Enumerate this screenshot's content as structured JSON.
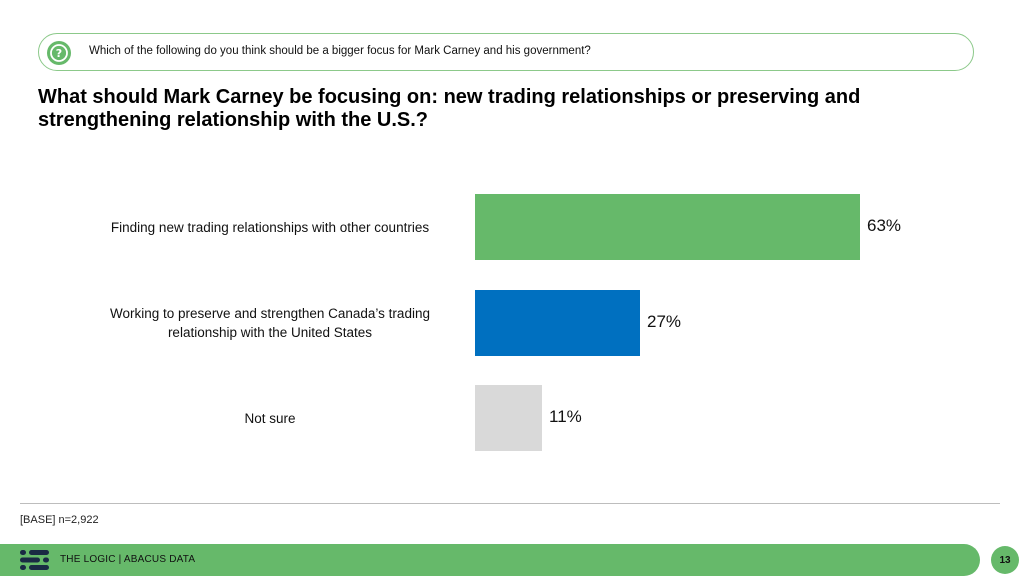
{
  "question": {
    "icon": "question-icon",
    "text": "Which of the following do you think should be a bigger focus for Mark Carney and his government?"
  },
  "headline": "What should Mark Carney be focusing on: new trading relationships or preserving and strengthening relationship with the U.S.?",
  "chart_data": {
    "type": "bar",
    "orientation": "horizontal",
    "title": "",
    "xlabel": "",
    "ylabel": "",
    "grid": false,
    "legend": "none",
    "xlim": [
      0,
      63
    ],
    "categories": [
      "Finding new trading relationships with other countries",
      "Working to preserve and strengthen Canada’s trading relationship with the United States",
      "Not sure"
    ],
    "values": [
      63,
      27,
      11
    ],
    "value_labels": [
      "63%",
      "27%",
      "11%"
    ],
    "colors": [
      "#66b96a",
      "#0070c0",
      "#d9d9d9"
    ]
  },
  "base_note": "[BASE] n=2,922",
  "footer": {
    "brand": "THE LOGIC  |  ABACUS DATA",
    "page_number": "13"
  },
  "colors": {
    "accent_green": "#66b96a",
    "blue": "#0070c0",
    "grey": "#d9d9d9"
  }
}
